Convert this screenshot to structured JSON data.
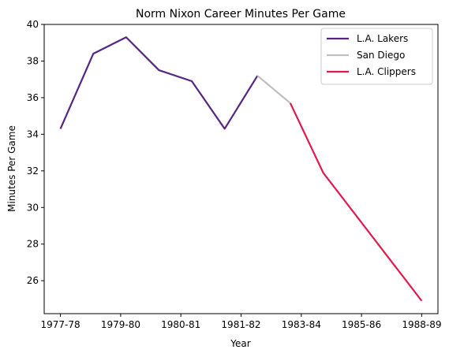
{
  "chart_data": {
    "type": "line",
    "title": "Norm Nixon Career Minutes Per Game",
    "xlabel": "Year",
    "ylabel": "Minutes Per Game",
    "x_tick_labels": [
      "1977-78",
      "1979-80",
      "1980-81",
      "1981-82",
      "1983-84",
      "1985-86",
      "1988-89"
    ],
    "ylim": [
      24.2,
      40.0
    ],
    "y_ticks": [
      26,
      28,
      30,
      32,
      34,
      36,
      38,
      40
    ],
    "grid": false,
    "legend_position": "top-right",
    "series": [
      {
        "name": "L.A. Lakers",
        "color": "#552583",
        "points": [
          {
            "x": "1977-78",
            "y": 34.3
          },
          {
            "x": "1978-79",
            "y": 38.4
          },
          {
            "x": "1979-80",
            "y": 39.3
          },
          {
            "x": "1980-81",
            "y": 37.5
          },
          {
            "x": "1981-82",
            "y": 36.9
          },
          {
            "x": "1982-83",
            "y": 34.3
          },
          {
            "x": "1983-84",
            "y": 37.2
          }
        ]
      },
      {
        "name": "San Diego",
        "color": "#bebebe",
        "points": [
          {
            "x": "1983-84",
            "y": 37.2
          },
          {
            "x": "1984-85",
            "y": 35.7
          }
        ]
      },
      {
        "name": "L.A. Clippers",
        "color": "#e0194f",
        "points": [
          {
            "x": "1984-85",
            "y": 35.7
          },
          {
            "x": "1985-86",
            "y": 31.9
          },
          {
            "x": "1988-89",
            "y": 24.9
          }
        ]
      }
    ]
  }
}
